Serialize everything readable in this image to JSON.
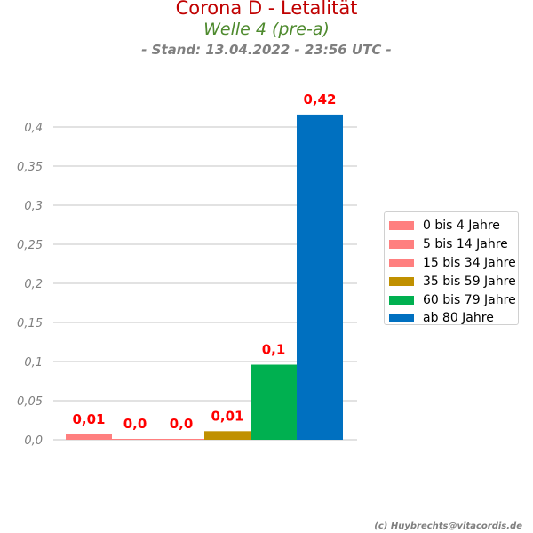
{
  "title": "Corona D - Letalität",
  "subtitle": "Welle 4 (pre-a)",
  "stand": "- Stand: 13.04.2022 - 23:56 UTC -",
  "credit": "(c) Huybrechts@vitacordis.de",
  "chart_data": {
    "type": "bar",
    "categories": [
      "0 bis 4 Jahre",
      "5 bis 14 Jahre",
      "15 bis 34 Jahre",
      "35 bis 59 Jahre",
      "60 bis 79 Jahre",
      "ab 80 Jahre"
    ],
    "values": [
      0.007,
      0.001,
      0.001,
      0.011,
      0.096,
      0.416
    ],
    "value_labels": [
      "0,01",
      "0,0",
      "0,0",
      "0,01",
      "0,1",
      "0,42"
    ],
    "colors": [
      "#ff7f7f",
      "#ff7f7f",
      "#ff7f7f",
      "#c09000",
      "#00b050",
      "#0070c0"
    ],
    "ylim": [
      0,
      0.4
    ],
    "yticks": [
      0,
      0.05,
      0.1,
      0.15,
      0.2,
      0.25,
      0.3,
      0.35,
      0.4
    ],
    "ytick_labels": [
      "0,0",
      "0,05",
      "0,1",
      "0,15",
      "0,2",
      "0,25",
      "0,3",
      "0,35",
      "0,4"
    ],
    "grid": true,
    "legend_position": "right"
  }
}
